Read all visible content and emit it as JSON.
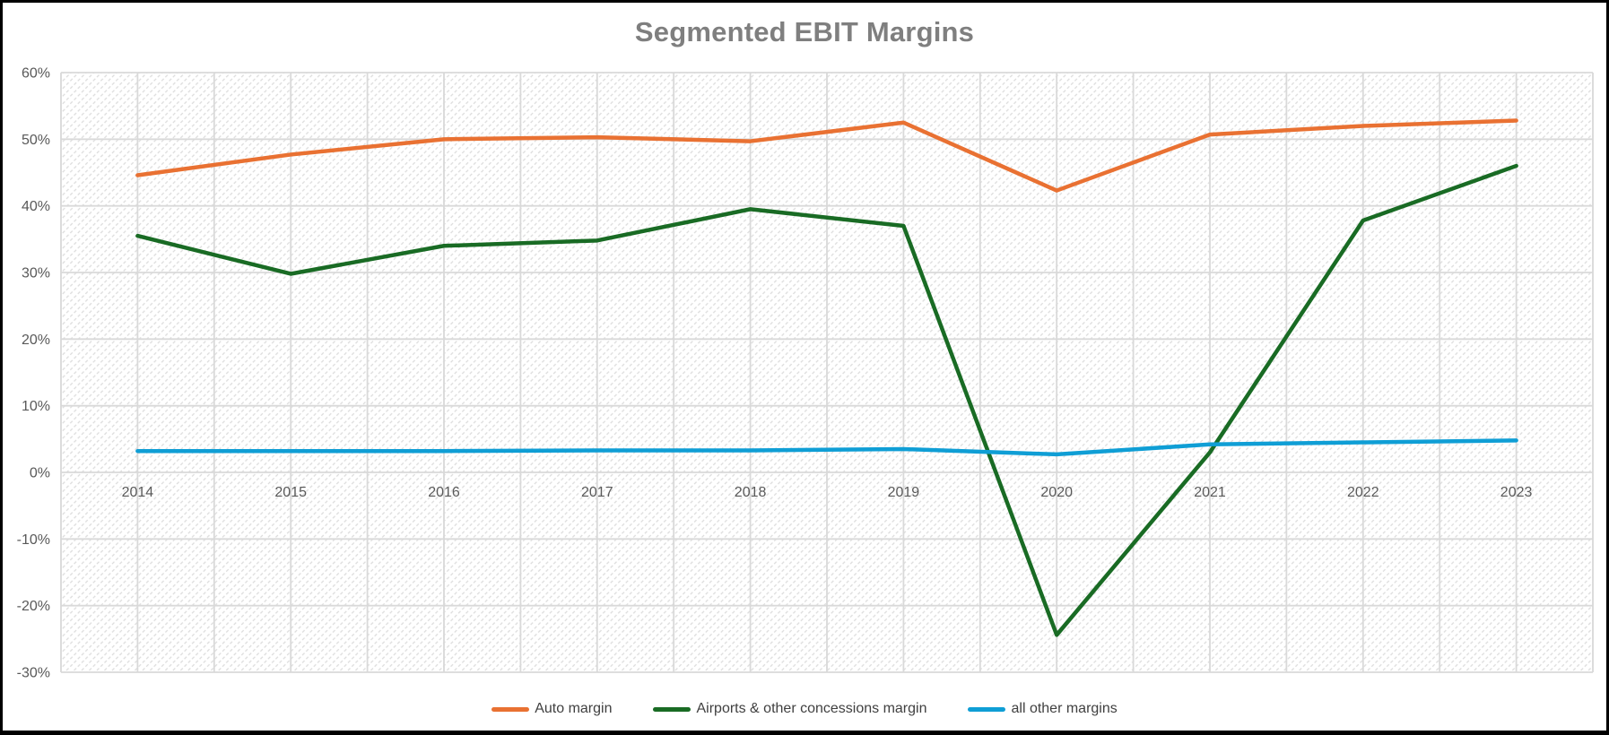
{
  "window": {
    "background": "#FFFFFF",
    "frame_border_color": "#000000"
  },
  "chart_data": {
    "type": "line",
    "title": "Segmented EBIT Margins",
    "categories": [
      "2014",
      "2015",
      "2016",
      "2017",
      "2018",
      "2019",
      "2020",
      "2021",
      "2022",
      "2023"
    ],
    "series": [
      {
        "name": "Auto margin",
        "color": "#E97132",
        "values": [
          44.6,
          47.7,
          50.0,
          50.3,
          49.7,
          52.5,
          42.3,
          50.7,
          52.0,
          52.8
        ]
      },
      {
        "name": "Airports & other concessions margin",
        "color": "#196B24",
        "values": [
          35.5,
          29.8,
          34.0,
          34.8,
          39.5,
          37.0,
          -24.4,
          3.0,
          37.8,
          46.0
        ]
      },
      {
        "name": "all other margins",
        "color": "#0F9ED5",
        "values": [
          3.2,
          3.2,
          3.2,
          3.3,
          3.3,
          3.5,
          2.7,
          4.2,
          4.5,
          4.8
        ]
      }
    ],
    "xlabel": "",
    "ylabel": "",
    "ylim": [
      -30,
      60
    ],
    "ytick_step": 10,
    "ytick_labels": [
      "60%",
      "50%",
      "40%",
      "30%",
      "20%",
      "10%",
      "0%",
      "-10%",
      "-20%",
      "-30%"
    ],
    "grid": true,
    "vertical_gridlines_per_category": 2,
    "plot_area_pattern": "diagonal-hatch",
    "legend_position": "bottom"
  },
  "style": {
    "title_color": "#7F7F7F",
    "axis_label_color": "#595959",
    "legend_text_color": "#404040",
    "gridline_color": "#D9D9D9",
    "hatch_color": "#DCDCDC"
  }
}
